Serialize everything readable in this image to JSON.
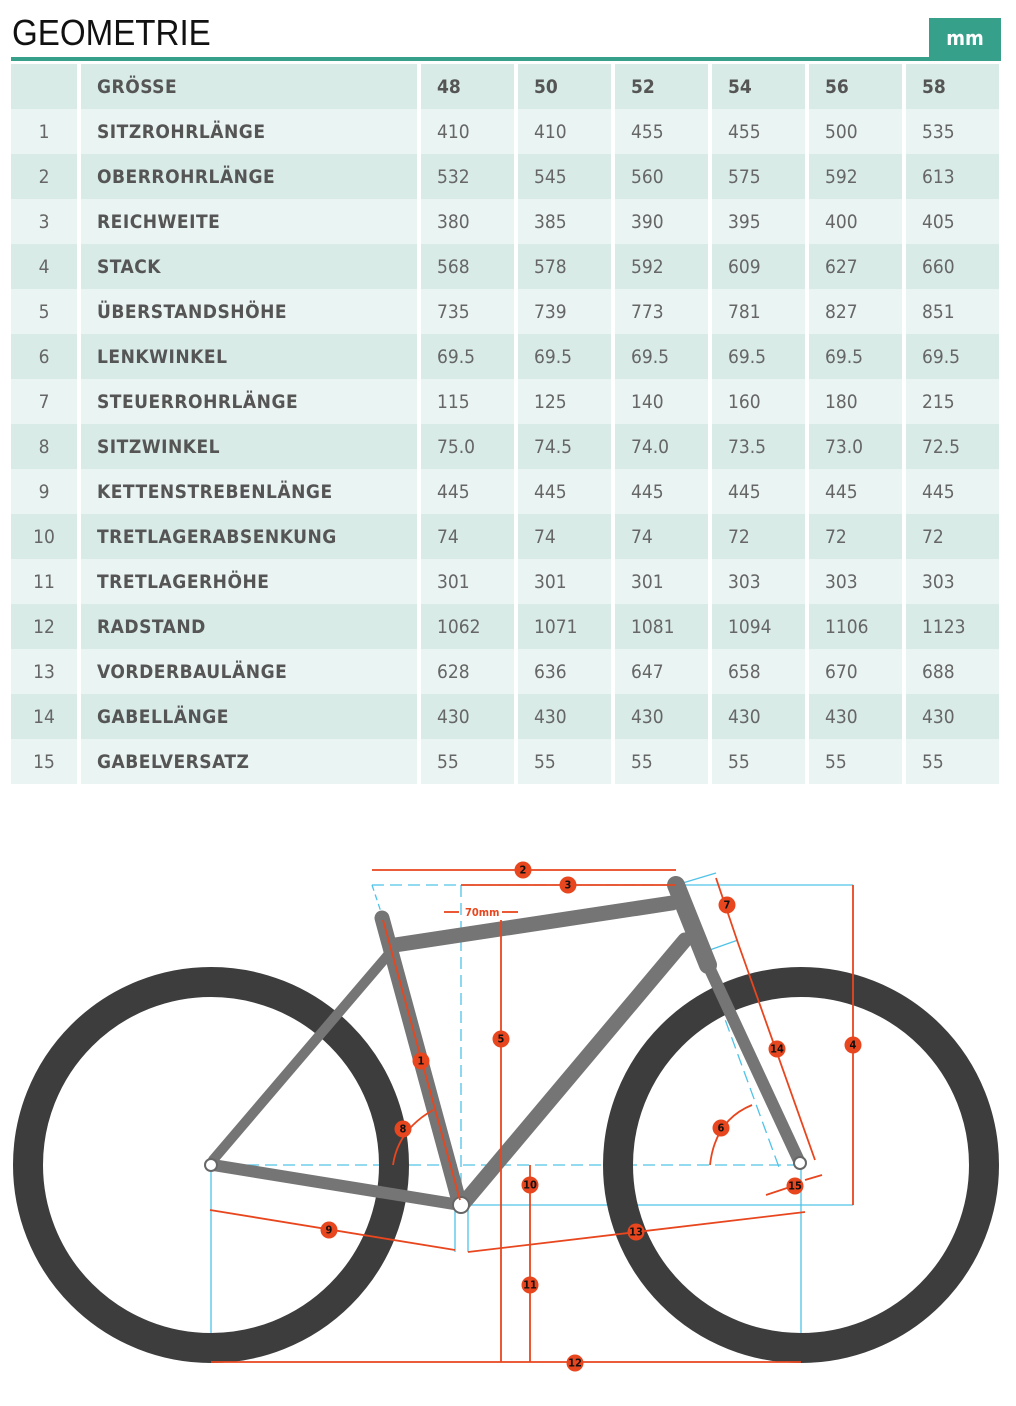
{
  "title": "GEOMETRIE",
  "unit": "mm",
  "table": {
    "header": {
      "label": "GRÖSSE",
      "sizes": [
        "48",
        "50",
        "52",
        "54",
        "56",
        "58"
      ]
    },
    "rows": [
      {
        "n": "1",
        "label": "SITZROHRLÄNGE",
        "v": [
          "410",
          "410",
          "455",
          "455",
          "500",
          "535"
        ]
      },
      {
        "n": "2",
        "label": "OBERROHRLÄNGE",
        "v": [
          "532",
          "545",
          "560",
          "575",
          "592",
          "613"
        ]
      },
      {
        "n": "3",
        "label": "REICHWEITE",
        "v": [
          "380",
          "385",
          "390",
          "395",
          "400",
          "405"
        ]
      },
      {
        "n": "4",
        "label": "STACK",
        "v": [
          "568",
          "578",
          "592",
          "609",
          "627",
          "660"
        ]
      },
      {
        "n": "5",
        "label": "ÜBERSTANDSHÖHE",
        "v": [
          "735",
          "739",
          "773",
          "781",
          "827",
          "851"
        ]
      },
      {
        "n": "6",
        "label": "LENKWINKEL",
        "v": [
          "69.5",
          "69.5",
          "69.5",
          "69.5",
          "69.5",
          "69.5"
        ]
      },
      {
        "n": "7",
        "label": "STEUERROHRLÄNGE",
        "v": [
          "115",
          "125",
          "140",
          "160",
          "180",
          "215"
        ]
      },
      {
        "n": "8",
        "label": "SITZWINKEL",
        "v": [
          "75.0",
          "74.5",
          "74.0",
          "73.5",
          "73.0",
          "72.5"
        ]
      },
      {
        "n": "9",
        "label": "KETTENSTREBENLÄNGE",
        "v": [
          "445",
          "445",
          "445",
          "445",
          "445",
          "445"
        ]
      },
      {
        "n": "10",
        "label": "TRETLAGERABSENKUNG",
        "v": [
          "74",
          "74",
          "74",
          "72",
          "72",
          "72"
        ]
      },
      {
        "n": "11",
        "label": "TRETLAGERHÖHE",
        "v": [
          "301",
          "301",
          "301",
          "303",
          "303",
          "303"
        ]
      },
      {
        "n": "12",
        "label": "RADSTAND",
        "v": [
          "1062",
          "1071",
          "1081",
          "1094",
          "1106",
          "1123"
        ]
      },
      {
        "n": "13",
        "label": "VORDERBAULÄNGE",
        "v": [
          "628",
          "636",
          "647",
          "658",
          "670",
          "688"
        ]
      },
      {
        "n": "14",
        "label": "GABELLÄNGE",
        "v": [
          "430",
          "430",
          "430",
          "430",
          "430",
          "430"
        ]
      },
      {
        "n": "15",
        "label": "GABELVERSATZ",
        "v": [
          "55",
          "55",
          "55",
          "55",
          "55",
          "55"
        ]
      }
    ]
  },
  "diagram": {
    "offset_label": "70mm",
    "markers": [
      "1",
      "2",
      "3",
      "4",
      "5",
      "6",
      "7",
      "8",
      "9",
      "10",
      "11",
      "12",
      "13",
      "14",
      "15"
    ]
  },
  "colors": {
    "accent": "#36a08a",
    "dimension": "#e8461e",
    "guide": "#4fc3e8",
    "frame": "#757575",
    "tire": "#3d3d3d"
  }
}
